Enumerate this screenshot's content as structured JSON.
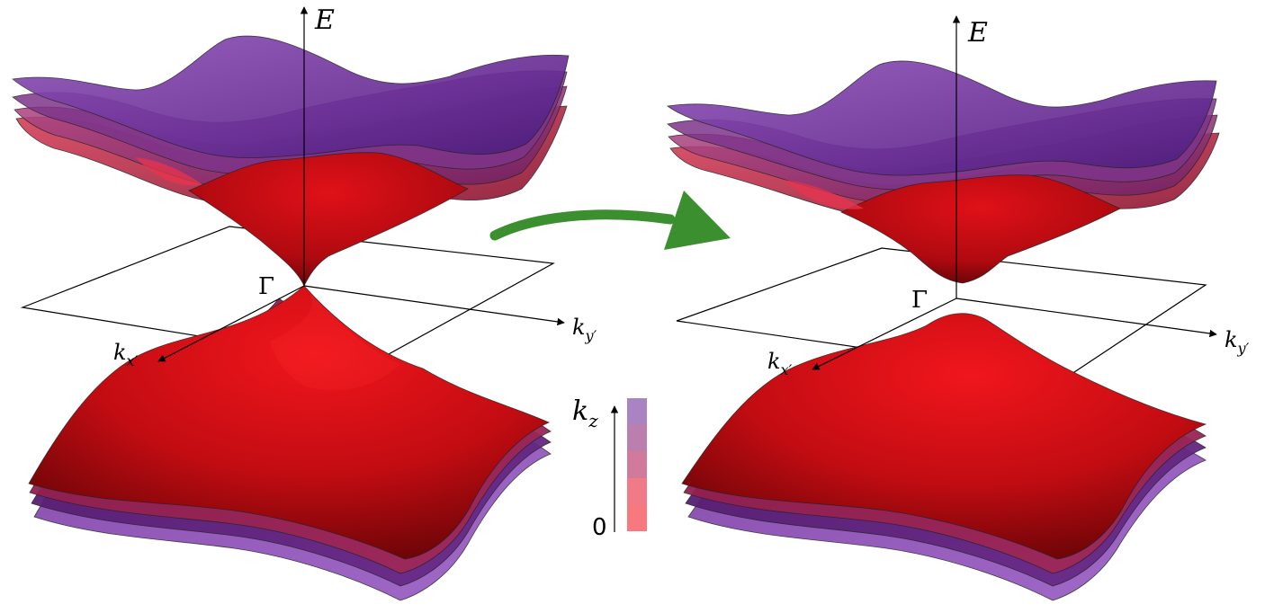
{
  "panels": [
    {
      "id": "left",
      "energy_axis_label": "E",
      "gamma_label": "Γ",
      "kx_label_main": "k",
      "kx_label_sub": "x′",
      "ky_label_main": "k",
      "ky_label_sub": "y′"
    },
    {
      "id": "right",
      "energy_axis_label": "E",
      "gamma_label": "Γ",
      "kx_label_main": "k",
      "kx_label_sub": "x′",
      "ky_label_main": "k",
      "ky_label_sub": "y′"
    }
  ],
  "colorbar": {
    "label_main": "k",
    "label_sub": "z",
    "zero_label": "0",
    "colors": [
      "#f7797d",
      "#f07a88",
      "#d27a9b",
      "#bb7fae",
      "#a983c2"
    ]
  },
  "colors": {
    "band_red": "#d60d14",
    "band_purple": "#6b2d8e",
    "arrow_green": "#3c8f2f"
  }
}
